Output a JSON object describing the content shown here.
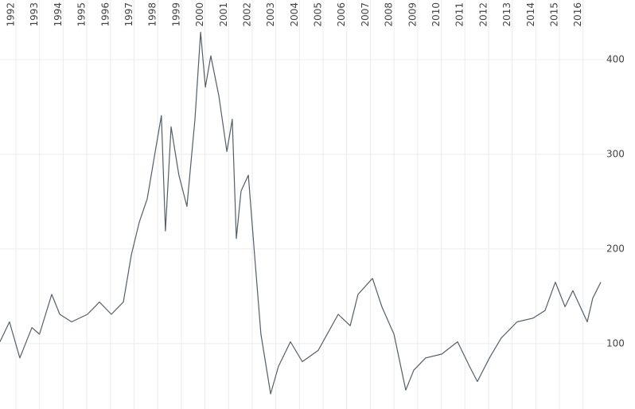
{
  "chart_data": {
    "type": "line",
    "x": [
      1991.53,
      1991.93,
      1992.37,
      1992.88,
      1993.2,
      1993.72,
      1994.06,
      1994.56,
      1995.23,
      1995.74,
      1996.24,
      1996.75,
      1997.09,
      1997.42,
      1997.76,
      1998.1,
      1998.36,
      1998.53,
      1998.77,
      1999.1,
      1999.44,
      1999.78,
      2000.02,
      2000.22,
      2000.45,
      2000.79,
      2001.13,
      2001.36,
      2001.53,
      2001.73,
      2002.04,
      2002.3,
      2002.57,
      2002.98,
      2003.31,
      2003.82,
      2004.32,
      2005.0,
      2005.84,
      2006.35,
      2006.68,
      2007.29,
      2007.69,
      2008.2,
      2008.7,
      2009.04,
      2009.54,
      2010.22,
      2010.89,
      2011.4,
      2011.73,
      2012.24,
      2012.74,
      2013.41,
      2014.09,
      2014.59,
      2015.03,
      2015.44,
      2015.77,
      2016.38,
      2016.61,
      2016.95
    ],
    "series": [
      {
        "color": "#555e66",
        "values": [
          102,
          123,
          85,
          117,
          110,
          152,
          131,
          123,
          131,
          144,
          131,
          144,
          194,
          228,
          253,
          303,
          341,
          219,
          329,
          278,
          245,
          337,
          429,
          371,
          404,
          362,
          303,
          337,
          211,
          261,
          278,
          194,
          110,
          47,
          76,
          102,
          81,
          93,
          131,
          119,
          152,
          169,
          139,
          110,
          51,
          72,
          85,
          89,
          102,
          76,
          60,
          85,
          106,
          123,
          127,
          135,
          165,
          139,
          156,
          123,
          148,
          165
        ]
      }
    ],
    "xlim": [
      1991.53,
      2017.12
    ],
    "xticks": [
      1992,
      1993,
      1994,
      1995,
      1996,
      1997,
      1998,
      1999,
      2000,
      2001,
      2002,
      2003,
      2004,
      2005,
      2006,
      2007,
      2008,
      2009,
      2010,
      2011,
      2012,
      2013,
      2014,
      2015,
      2016
    ],
    "ylim": [
      31,
      463
    ],
    "yticks": [
      100,
      200,
      300,
      400
    ],
    "grid": true
  }
}
